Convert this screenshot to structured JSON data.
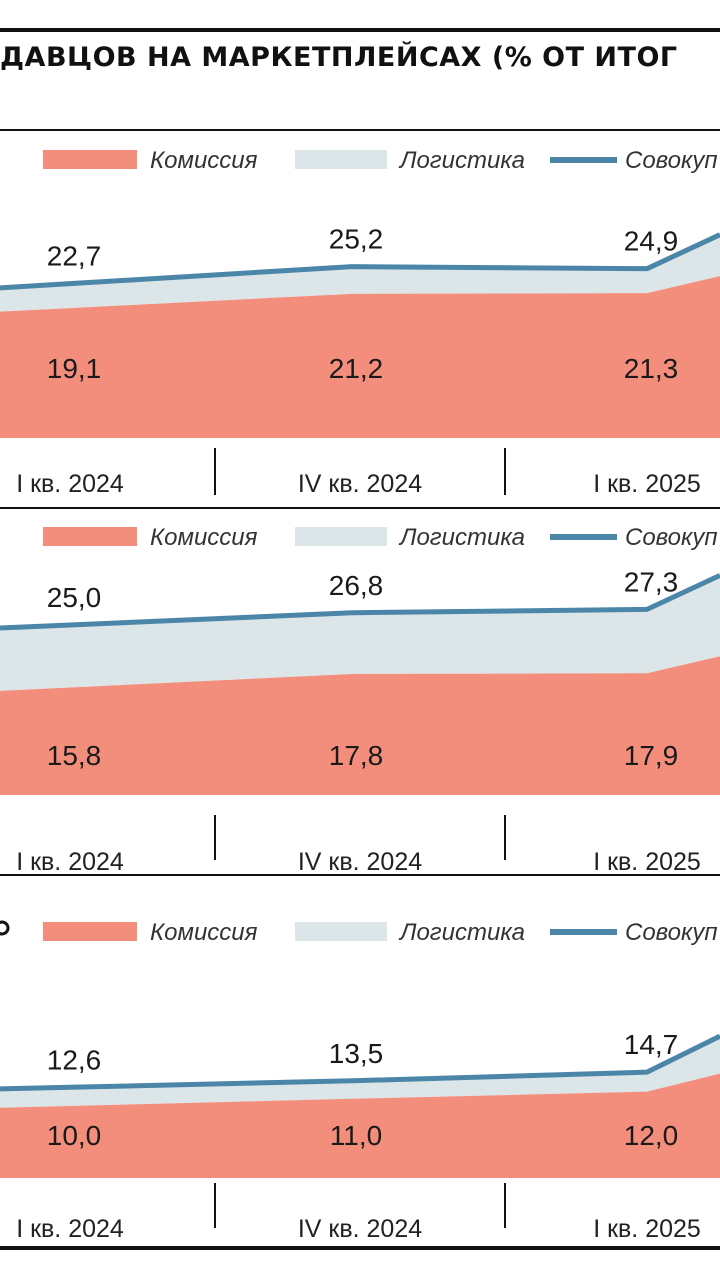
{
  "header": {
    "title": "ДАВЦОВ НА МАРКЕТПЛЕЙСАХ (% ОТ ИТОГ"
  },
  "colors": {
    "commission": "#f48e7c",
    "logistics": "#dce5e7",
    "total_line": "#4b86a8",
    "frame": "#111111"
  },
  "legend": {
    "commission": "Комиссия",
    "logistics": "Логистика",
    "total": "Совокуп"
  },
  "chart_data": [
    {
      "type": "area",
      "categories": [
        "I кв. 2024",
        "IV кв. 2024",
        "I кв. 2025"
      ],
      "series": [
        {
          "name": "Комиссия",
          "values": [
            19.1,
            21.2,
            21.3
          ]
        },
        {
          "name": "Совокуп",
          "values": [
            22.7,
            25.2,
            24.9
          ]
        }
      ],
      "legend_position": "top",
      "grid": false
    },
    {
      "type": "area",
      "categories": [
        "I кв. 2024",
        "IV кв. 2024",
        "I кв. 2025"
      ],
      "series": [
        {
          "name": "Комиссия",
          "values": [
            15.8,
            17.8,
            17.9
          ]
        },
        {
          "name": "Совокуп",
          "values": [
            25.0,
            26.8,
            27.3
          ]
        }
      ],
      "legend_position": "top",
      "grid": false
    },
    {
      "type": "area",
      "categories": [
        "I кв. 2024",
        "IV кв. 2024",
        "I кв. 2025"
      ],
      "series": [
        {
          "name": "Комиссия",
          "values": [
            10.0,
            11.0,
            12.0
          ]
        },
        {
          "name": "Совокуп",
          "values": [
            12.6,
            13.5,
            14.7
          ]
        }
      ],
      "legend_position": "top",
      "grid": false
    }
  ],
  "panel_labels": {
    "p0": {
      "commission": [
        "19,1",
        "21,2",
        "21,3"
      ],
      "total": [
        "22,7",
        "25,2",
        "24,9"
      ]
    },
    "p1": {
      "commission": [
        "15,8",
        "17,8",
        "17,9"
      ],
      "total": [
        "25,0",
        "26,8",
        "27,3"
      ]
    },
    "p2": {
      "commission": [
        "10,0",
        "11,0",
        "12,0"
      ],
      "total": [
        "12,6",
        "13,5",
        "14,7"
      ]
    }
  },
  "axis_labels": [
    "I кв. 2024",
    "IV кв. 2024",
    "I кв. 2025"
  ]
}
